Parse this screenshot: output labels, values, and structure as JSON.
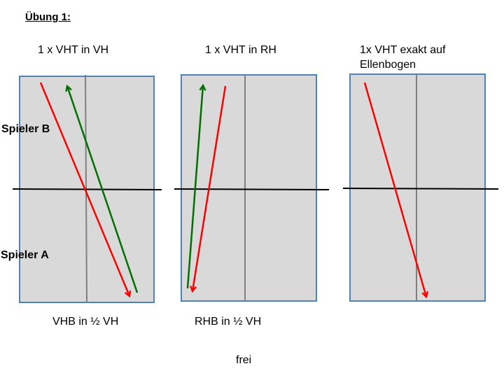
{
  "exercise_title": "Übung 1:",
  "players": {
    "top": "Spieler B",
    "bottom": "Spieler A"
  },
  "tables": [
    {
      "title_line1": "1 x VHT in VH",
      "title_line2": "",
      "caption": "VHB in ½ VH",
      "arrows": [
        {
          "color": "#ff0000",
          "description": "red"
        },
        {
          "color": "#007000",
          "description": "green"
        }
      ]
    },
    {
      "title_line1": "1 x VHT in RH",
      "title_line2": "",
      "caption": "RHB in ½ VH",
      "arrows": [
        {
          "color": "#ff0000",
          "description": "red"
        },
        {
          "color": "#007000",
          "description": "green"
        }
      ]
    },
    {
      "title_line1": "1x VHT exakt auf",
      "title_line2": "Ellenbogen",
      "caption": "",
      "arrows": [
        {
          "color": "#ff0000",
          "description": "red"
        }
      ]
    }
  ],
  "footer": "frei",
  "colors": {
    "table_fill": "#d9d9d9",
    "table_border": "#4f81bd",
    "center_line": "#808080",
    "net": "#000000",
    "red_arrow": "#ff0000",
    "green_arrow": "#007000"
  }
}
